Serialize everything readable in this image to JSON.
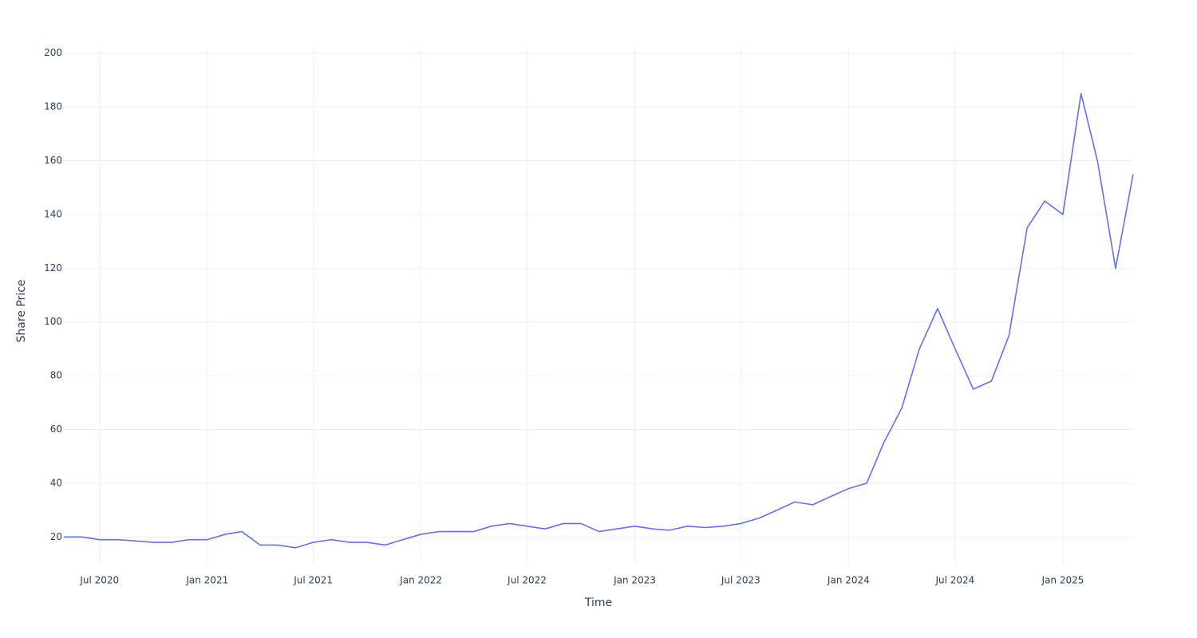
{
  "chart_data": {
    "type": "line",
    "x_label": "Time",
    "y_label": "Share Price",
    "x": [
      "2020-05",
      "2020-06",
      "2020-07",
      "2020-08",
      "2020-09",
      "2020-10",
      "2020-11",
      "2020-12",
      "2021-01",
      "2021-02",
      "2021-03",
      "2021-04",
      "2021-05",
      "2021-06",
      "2021-07",
      "2021-08",
      "2021-09",
      "2021-10",
      "2021-11",
      "2021-12",
      "2022-01",
      "2022-02",
      "2022-03",
      "2022-04",
      "2022-05",
      "2022-06",
      "2022-07",
      "2022-08",
      "2022-09",
      "2022-10",
      "2022-11",
      "2022-12",
      "2023-01",
      "2023-02",
      "2023-03",
      "2023-04",
      "2023-05",
      "2023-06",
      "2023-07",
      "2023-08",
      "2023-09",
      "2023-10",
      "2023-11",
      "2023-12",
      "2024-01",
      "2024-02",
      "2024-03",
      "2024-04",
      "2024-05",
      "2024-06",
      "2024-07",
      "2024-08",
      "2024-09",
      "2024-10",
      "2024-11",
      "2024-12",
      "2025-01",
      "2025-02",
      "2025-03",
      "2025-04",
      "2025-05"
    ],
    "values": [
      20,
      20,
      19,
      19,
      18.5,
      18,
      18,
      19,
      19,
      21,
      22,
      17,
      17,
      16,
      18,
      19,
      18,
      18,
      17,
      19,
      21,
      22,
      22,
      22,
      24,
      25,
      24,
      23,
      25,
      25,
      22,
      23,
      24,
      23,
      22.5,
      24,
      23.5,
      24,
      25,
      27,
      30,
      33,
      32,
      35,
      38,
      40,
      55,
      68,
      90,
      105,
      90,
      75,
      78,
      95,
      135,
      145,
      140,
      185,
      160,
      120,
      155
    ],
    "color": "#636efa",
    "xlim": [
      "2020-05",
      "2025-05"
    ],
    "xticks": [
      {
        "value": "2020-07",
        "label": "Jul 2020"
      },
      {
        "value": "2021-01",
        "label": "Jan 2021"
      },
      {
        "value": "2021-07",
        "label": "Jul 2021"
      },
      {
        "value": "2022-01",
        "label": "Jan 2022"
      },
      {
        "value": "2022-07",
        "label": "Jul 2022"
      },
      {
        "value": "2023-01",
        "label": "Jan 2023"
      },
      {
        "value": "2023-07",
        "label": "Jul 2023"
      },
      {
        "value": "2024-01",
        "label": "Jan 2024"
      },
      {
        "value": "2024-07",
        "label": "Jul 2024"
      },
      {
        "value": "2025-01",
        "label": "Jan 2025"
      }
    ],
    "ylim": [
      10,
      202
    ],
    "yticks": [
      20,
      40,
      60,
      80,
      100,
      120,
      140,
      160,
      180,
      200
    ],
    "grid": true
  }
}
